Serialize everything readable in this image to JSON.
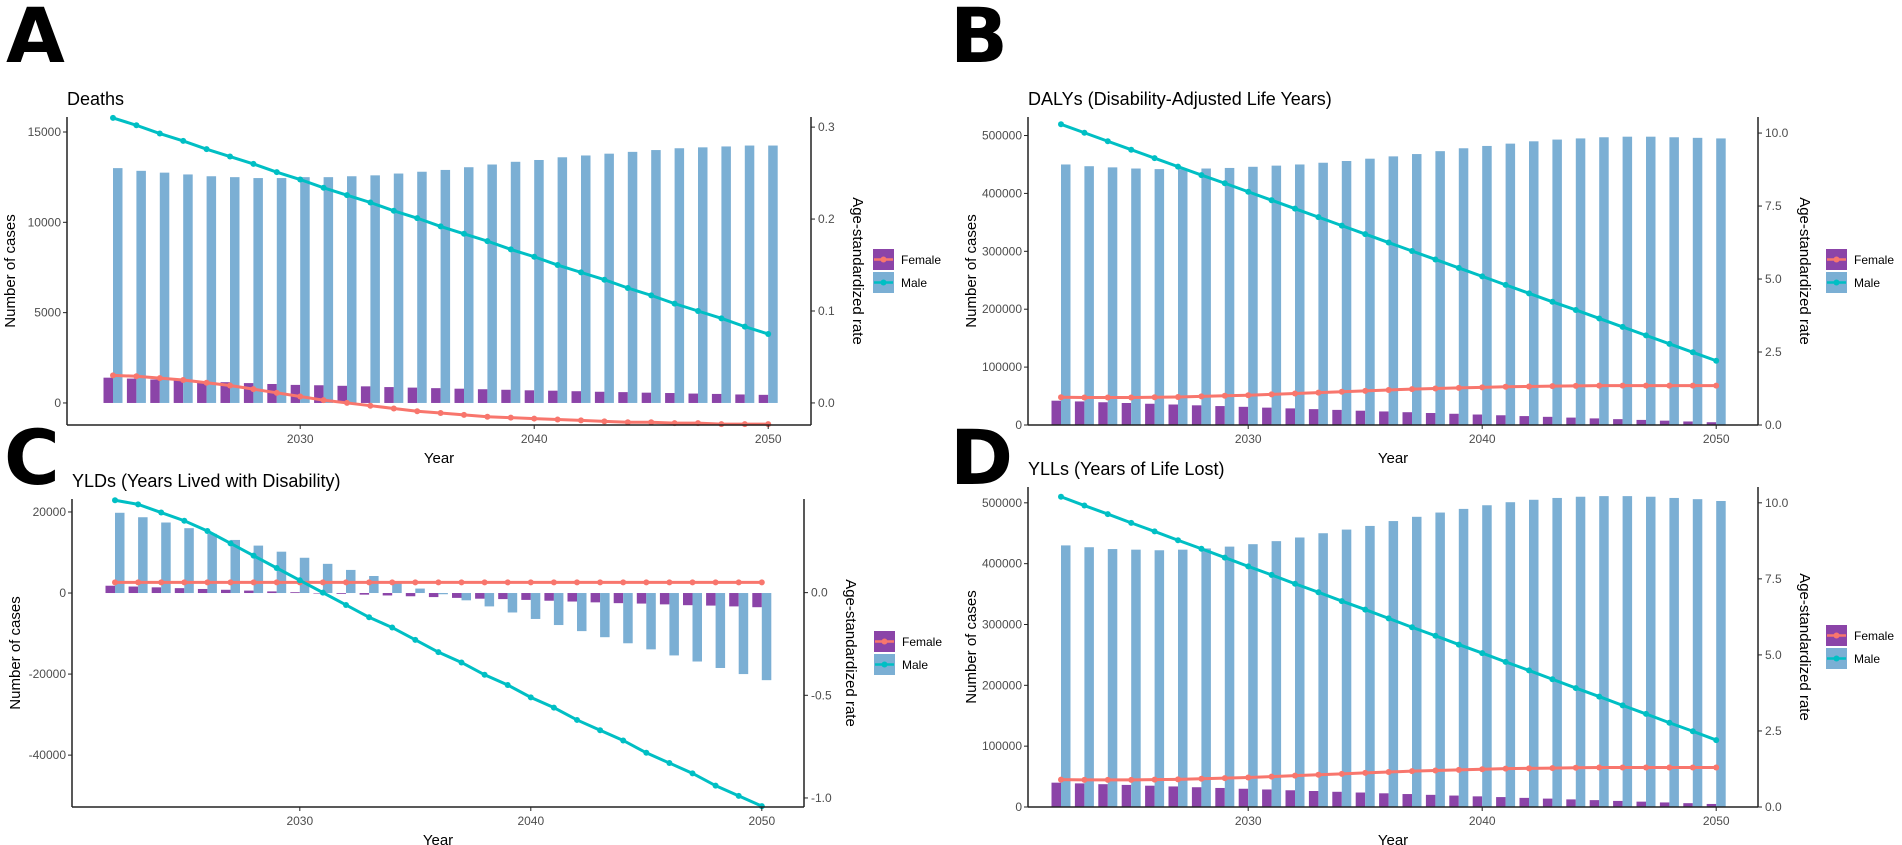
{
  "colors": {
    "female_bar": "#8B44A8",
    "male_bar": "#7BAFD4",
    "female_line": "#F8766D",
    "male_line": "#00BFC4",
    "axis": "#222222"
  },
  "legend": {
    "female": "Female",
    "male": "Male"
  },
  "chart_data": [
    {
      "panel": "A",
      "type": "bar+line",
      "title": "Deaths",
      "xlabel": "Year",
      "ylabel": "Number of cases",
      "y2label": "Age-standardized rate",
      "xticks": [
        "2030",
        "2040",
        "2050"
      ],
      "yticks": [
        0,
        5000,
        10000,
        15000
      ],
      "ytick_labels": [
        "0",
        "5000",
        "10000",
        "15000"
      ],
      "y2ticks": [
        0,
        0.1,
        0.2,
        0.3
      ],
      "y2tick_labels": [
        "0.0",
        "0.1",
        "0.2",
        "0.3"
      ],
      "ylim": [
        -1220,
        15830
      ],
      "y2lim": [
        -0.024,
        0.311
      ],
      "x": [
        2022,
        2023,
        2024,
        2025,
        2026,
        2027,
        2028,
        2029,
        2030,
        2031,
        2032,
        2033,
        2034,
        2035,
        2036,
        2037,
        2038,
        2039,
        2040,
        2041,
        2042,
        2043,
        2044,
        2045,
        2046,
        2047,
        2048,
        2049,
        2050
      ],
      "cases_female": [
        1400,
        1350,
        1300,
        1250,
        1200,
        1150,
        1100,
        1050,
        1000,
        980,
        950,
        920,
        880,
        850,
        820,
        790,
        760,
        730,
        700,
        680,
        650,
        620,
        600,
        570,
        550,
        520,
        500,
        470,
        450
      ],
      "cases_male": [
        13000,
        12850,
        12750,
        12650,
        12550,
        12500,
        12450,
        12450,
        12500,
        12500,
        12550,
        12600,
        12700,
        12800,
        12900,
        13050,
        13200,
        13350,
        13450,
        13600,
        13700,
        13800,
        13900,
        14000,
        14100,
        14150,
        14200,
        14250,
        14250
      ],
      "rate_female": [
        0.03,
        0.029,
        0.027,
        0.025,
        0.022,
        0.019,
        0.015,
        0.011,
        0.007,
        0.003,
        0.0,
        -0.003,
        -0.006,
        -0.009,
        -0.011,
        -0.013,
        -0.015,
        -0.016,
        -0.017,
        -0.018,
        -0.019,
        -0.02,
        -0.021,
        -0.021,
        -0.022,
        -0.022,
        -0.023,
        -0.023,
        -0.023
      ],
      "rate_male": [
        0.31,
        0.302,
        0.293,
        0.285,
        0.276,
        0.268,
        0.26,
        0.251,
        0.243,
        0.234,
        0.226,
        0.218,
        0.209,
        0.201,
        0.192,
        0.184,
        0.176,
        0.167,
        0.159,
        0.15,
        0.142,
        0.134,
        0.125,
        0.117,
        0.108,
        0.1,
        0.092,
        0.083,
        0.075
      ]
    },
    {
      "panel": "B",
      "type": "bar+line",
      "title": "DALYs (Disability-Adjusted Life Years)",
      "xlabel": "Year",
      "ylabel": "Number of cases",
      "y2label": "Age-standardized rate",
      "xticks": [
        "2030",
        "2040",
        "2050"
      ],
      "yticks": [
        0,
        100000,
        200000,
        300000,
        400000,
        500000
      ],
      "ytick_labels": [
        "0",
        "100000",
        "200000",
        "300000",
        "400000",
        "500000"
      ],
      "y2ticks": [
        0,
        2.5,
        5,
        7.5,
        10
      ],
      "y2tick_labels": [
        "0.0",
        "2.5",
        "5.0",
        "7.5",
        "10.0"
      ],
      "ylim": [
        0,
        532000
      ],
      "y2lim": [
        0,
        10.55
      ],
      "x": [
        2022,
        2023,
        2024,
        2025,
        2026,
        2027,
        2028,
        2029,
        2030,
        2031,
        2032,
        2033,
        2034,
        2035,
        2036,
        2037,
        2038,
        2039,
        2040,
        2041,
        2042,
        2043,
        2044,
        2045,
        2046,
        2047,
        2048,
        2049,
        2050
      ],
      "cases_female": [
        42000,
        40700,
        39300,
        38000,
        36700,
        35400,
        34000,
        32700,
        31400,
        30000,
        28700,
        27400,
        26100,
        24700,
        23400,
        22100,
        20700,
        19400,
        18100,
        16800,
        15400,
        14100,
        12800,
        11400,
        10100,
        8800,
        7500,
        6100,
        4800
      ],
      "cases_male": [
        450000,
        447000,
        445000,
        443000,
        442000,
        442000,
        443000,
        444000,
        446000,
        448000,
        450000,
        453000,
        456000,
        460000,
        464000,
        468000,
        473000,
        478000,
        482000,
        486000,
        490000,
        493000,
        495000,
        497000,
        498000,
        498000,
        497000,
        496000,
        495000
      ],
      "rate_female": [
        0.95,
        0.94,
        0.94,
        0.94,
        0.95,
        0.96,
        0.98,
        1.0,
        1.02,
        1.05,
        1.08,
        1.11,
        1.14,
        1.17,
        1.2,
        1.23,
        1.25,
        1.27,
        1.29,
        1.31,
        1.32,
        1.33,
        1.34,
        1.35,
        1.35,
        1.35,
        1.35,
        1.35,
        1.35
      ],
      "rate_male": [
        10.3,
        10.01,
        9.72,
        9.43,
        9.14,
        8.85,
        8.56,
        8.28,
        7.99,
        7.7,
        7.41,
        7.12,
        6.83,
        6.54,
        6.25,
        5.96,
        5.67,
        5.38,
        5.09,
        4.8,
        4.51,
        4.22,
        3.94,
        3.65,
        3.36,
        3.07,
        2.78,
        2.49,
        2.2
      ]
    },
    {
      "panel": "C",
      "type": "bar+line",
      "title": "YLDs (Years Lived with Disability)",
      "xlabel": "Year",
      "ylabel": "Number of cases",
      "y2label": "Age-standardized rate",
      "xticks": [
        "2030",
        "2040",
        "2050"
      ],
      "yticks": [
        -40000,
        -20000,
        0,
        20000
      ],
      "ytick_labels": [
        "-40000",
        "-20000",
        "0",
        "20000"
      ],
      "y2ticks": [
        -1,
        -0.5,
        0
      ],
      "y2tick_labels": [
        "-1.0",
        "-0.5",
        "0.0"
      ],
      "ylim": [
        -52800,
        23200
      ],
      "y2lim": [
        -1.044,
        0.456
      ],
      "x": [
        2022,
        2023,
        2024,
        2025,
        2026,
        2027,
        2028,
        2029,
        2030,
        2031,
        2032,
        2033,
        2034,
        2035,
        2036,
        2037,
        2038,
        2039,
        2040,
        2041,
        2042,
        2043,
        2044,
        2045,
        2046,
        2047,
        2048,
        2049,
        2050
      ],
      "cases_female": [
        1800,
        1600,
        1400,
        1200,
        1000,
        800,
        600,
        400,
        200,
        0,
        -200,
        -400,
        -600,
        -800,
        -1000,
        -1200,
        -1400,
        -1500,
        -1700,
        -1900,
        -2100,
        -2300,
        -2500,
        -2600,
        -2800,
        -3000,
        -3100,
        -3300,
        -3500
      ],
      "cases_male": [
        19800,
        18700,
        17400,
        16000,
        14600,
        13100,
        11700,
        10200,
        8700,
        7200,
        5700,
        4200,
        2600,
        1100,
        -300,
        -1800,
        -3300,
        -4800,
        -6400,
        -7900,
        -9400,
        -10900,
        -12400,
        -13900,
        -15400,
        -16900,
        -18500,
        -20000,
        -21500
      ],
      "rate_female": [
        0.05,
        0.05,
        0.05,
        0.05,
        0.05,
        0.05,
        0.05,
        0.05,
        0.05,
        0.05,
        0.05,
        0.05,
        0.05,
        0.05,
        0.05,
        0.05,
        0.05,
        0.05,
        0.05,
        0.05,
        0.05,
        0.05,
        0.05,
        0.05,
        0.05,
        0.05,
        0.05,
        0.05,
        0.05
      ],
      "rate_male": [
        0.45,
        0.43,
        0.39,
        0.35,
        0.3,
        0.24,
        0.18,
        0.12,
        0.06,
        0.0,
        -0.06,
        -0.12,
        -0.17,
        -0.23,
        -0.29,
        -0.34,
        -0.4,
        -0.45,
        -0.51,
        -0.56,
        -0.62,
        -0.67,
        -0.72,
        -0.78,
        -0.83,
        -0.88,
        -0.94,
        -0.99,
        -1.04
      ]
    },
    {
      "panel": "D",
      "type": "bar+line",
      "title": "YLLs (Years of Life Lost)",
      "xlabel": "Year",
      "ylabel": "Number of cases",
      "y2label": "Age-standardized rate",
      "xticks": [
        "2030",
        "2040",
        "2050"
      ],
      "yticks": [
        0,
        100000,
        200000,
        300000,
        400000,
        500000
      ],
      "ytick_labels": [
        "0",
        "100000",
        "200000",
        "300000",
        "400000",
        "500000"
      ],
      "y2ticks": [
        0,
        2.5,
        5,
        7.5,
        10
      ],
      "y2tick_labels": [
        "0.0",
        "2.5",
        "5.0",
        "7.5",
        "10.0"
      ],
      "ylim": [
        0,
        526000
      ],
      "y2lim": [
        0,
        10.52
      ],
      "x": [
        2022,
        2023,
        2024,
        2025,
        2026,
        2027,
        2028,
        2029,
        2030,
        2031,
        2032,
        2033,
        2034,
        2035,
        2036,
        2037,
        2038,
        2039,
        2040,
        2041,
        2042,
        2043,
        2044,
        2045,
        2046,
        2047,
        2048,
        2049,
        2050
      ],
      "cases_female": [
        40000,
        38800,
        37500,
        36300,
        35000,
        33800,
        32500,
        31300,
        30000,
        28800,
        27500,
        26300,
        25000,
        23800,
        22500,
        21300,
        20000,
        18800,
        17500,
        16300,
        15000,
        13800,
        12500,
        11300,
        10000,
        8800,
        7500,
        6300,
        5000
      ],
      "cases_male": [
        430000,
        427000,
        424000,
        423000,
        422000,
        423000,
        425000,
        428000,
        432000,
        437000,
        443000,
        450000,
        456000,
        462000,
        470000,
        477000,
        484000,
        490000,
        496000,
        501000,
        505000,
        508000,
        510000,
        511000,
        511000,
        510000,
        508000,
        506000,
        503000
      ],
      "rate_female": [
        0.9,
        0.89,
        0.89,
        0.89,
        0.9,
        0.91,
        0.93,
        0.95,
        0.97,
        1.0,
        1.03,
        1.06,
        1.09,
        1.12,
        1.15,
        1.18,
        1.2,
        1.22,
        1.24,
        1.26,
        1.27,
        1.28,
        1.29,
        1.3,
        1.3,
        1.3,
        1.3,
        1.3,
        1.3
      ],
      "rate_male": [
        10.2,
        9.91,
        9.63,
        9.34,
        9.06,
        8.77,
        8.49,
        8.2,
        7.91,
        7.63,
        7.34,
        7.06,
        6.77,
        6.49,
        6.2,
        5.91,
        5.63,
        5.34,
        5.06,
        4.77,
        4.49,
        4.2,
        3.91,
        3.63,
        3.34,
        3.06,
        2.77,
        2.49,
        2.2
      ]
    }
  ]
}
